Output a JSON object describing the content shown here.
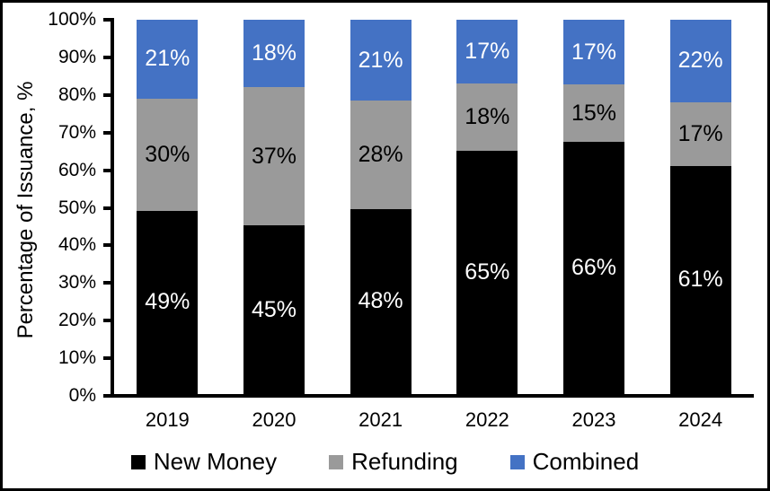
{
  "chart_data": {
    "type": "bar",
    "stacked": true,
    "title": "",
    "ylabel": "Percentage of Issuance, %",
    "xlabel": "",
    "categories": [
      "2019",
      "2020",
      "2021",
      "2022",
      "2023",
      "2024"
    ],
    "series": [
      {
        "name": "New Money",
        "color": "#000000",
        "label_color": "#FFFFFF",
        "values": [
          49,
          45,
          48,
          65,
          66,
          61
        ]
      },
      {
        "name": "Refunding",
        "color": "#9A9A9A",
        "label_color": "#000000",
        "values": [
          30,
          37,
          28,
          18,
          15,
          17
        ]
      },
      {
        "name": "Combined",
        "color": "#4472C4",
        "label_color": "#FFFFFF",
        "values": [
          21,
          18,
          21,
          17,
          17,
          22
        ]
      }
    ],
    "value_suffix": "%",
    "ylim": [
      0,
      100
    ],
    "y_tick_step": 10,
    "y_ticks": [
      "0%",
      "10%",
      "20%",
      "30%",
      "40%",
      "50%",
      "60%",
      "70%",
      "80%",
      "90%",
      "100%"
    ],
    "grid": false,
    "legend_position": "bottom"
  }
}
